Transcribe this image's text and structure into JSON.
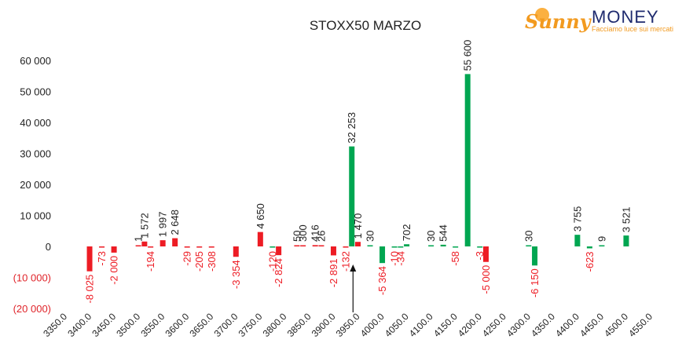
{
  "logo": {
    "word1": "Sunny",
    "word2": "MONEY",
    "tagline": "Facciamo luce sui mercati"
  },
  "chart_data": {
    "type": "bar",
    "title": "STOXX50 MARZO",
    "xlabel": "",
    "ylabel": "",
    "x_range": [
      3350,
      4550
    ],
    "x_ticks": [
      "3350.0",
      "3400.0",
      "3450.0",
      "3500.0",
      "3550.0",
      "3600.0",
      "3650.0",
      "3700.0",
      "3750.0",
      "3800.0",
      "3850.0",
      "3900.0",
      "3950.0",
      "4000.0",
      "4050.0",
      "4100.0",
      "4150.0",
      "4200.0",
      "4250.0",
      "4300.0",
      "4350.0",
      "4400.0",
      "4450.0",
      "4500.0",
      "4550.0"
    ],
    "ylim": [
      -20000,
      60000
    ],
    "y_ticks": [
      {
        "value": 60000,
        "label": "60 000"
      },
      {
        "value": 50000,
        "label": "50 000"
      },
      {
        "value": 40000,
        "label": "40 000"
      },
      {
        "value": 30000,
        "label": "30 000"
      },
      {
        "value": 20000,
        "label": "20 000"
      },
      {
        "value": 10000,
        "label": "10 000"
      },
      {
        "value": 0,
        "label": "0"
      },
      {
        "value": -10000,
        "label": "(10 000)"
      },
      {
        "value": -20000,
        "label": "(20 000)"
      }
    ],
    "grid": false,
    "colors": {
      "positive": "#00a651",
      "negative": "#ed1c24",
      "axis_negative_label": "#e0242a"
    },
    "marker": {
      "x": 3940,
      "direction": "up"
    },
    "bars": [
      {
        "x": 3400,
        "value": -8025,
        "label": "-8 025",
        "color": "#ed1c24"
      },
      {
        "x": 3425,
        "value": -73,
        "label": "-73",
        "color": "#ed1c24"
      },
      {
        "x": 3450,
        "value": -2000,
        "label": "-2 000",
        "color": "#ed1c24"
      },
      {
        "x": 3500,
        "value": 1,
        "label": "1",
        "color": "#ed1c24"
      },
      {
        "x": 3512.5,
        "value": 1572,
        "label": "1 572",
        "color": "#ed1c24"
      },
      {
        "x": 3525,
        "value": -194,
        "label": "-194",
        "color": "#ed1c24"
      },
      {
        "x": 3550,
        "value": 1997,
        "label": "1 997",
        "color": "#ed1c24"
      },
      {
        "x": 3575,
        "value": 2648,
        "label": "2 648",
        "color": "#ed1c24"
      },
      {
        "x": 3600,
        "value": -29,
        "label": "-29",
        "color": "#ed1c24"
      },
      {
        "x": 3625,
        "value": -205,
        "label": "-205",
        "color": "#ed1c24"
      },
      {
        "x": 3650,
        "value": -308,
        "label": "-308",
        "color": "#ed1c24"
      },
      {
        "x": 3700,
        "value": -3354,
        "label": "-3 354",
        "color": "#ed1c24"
      },
      {
        "x": 3750,
        "value": 4650,
        "label": "4 650",
        "color": "#ed1c24"
      },
      {
        "x": 3775,
        "value": -120,
        "label": "-120",
        "color": "#00a651"
      },
      {
        "x": 3787.5,
        "value": -2824,
        "label": "-2 824",
        "color": "#ed1c24"
      },
      {
        "x": 3825,
        "value": 50,
        "label": "50",
        "color": "#ed1c24"
      },
      {
        "x": 3837.5,
        "value": 300,
        "label": "300",
        "color": "#ed1c24"
      },
      {
        "x": 3862.5,
        "value": 416,
        "label": "416",
        "color": "#ed1c24"
      },
      {
        "x": 3875,
        "value": 26,
        "label": "26",
        "color": "#ed1c24"
      },
      {
        "x": 3900,
        "value": -2891,
        "label": "-2 891",
        "color": "#ed1c24"
      },
      {
        "x": 3925,
        "value": -132,
        "label": "-132",
        "color": "#ed1c24"
      },
      {
        "x": 3937.5,
        "value": 32253,
        "label": "32 253",
        "color": "#00a651"
      },
      {
        "x": 3950,
        "value": 1470,
        "label": "1 470",
        "color": "#ed1c24"
      },
      {
        "x": 3975,
        "value": 30,
        "label": "30",
        "color": "#00a651"
      },
      {
        "x": 4000,
        "value": -5364,
        "label": "-5 364",
        "color": "#00a651"
      },
      {
        "x": 4025,
        "value": -10,
        "label": "-10",
        "color": "#00a651"
      },
      {
        "x": 4037.5,
        "value": -34,
        "label": "-34",
        "color": "#00a651"
      },
      {
        "x": 4050,
        "value": 702,
        "label": "702",
        "color": "#00a651"
      },
      {
        "x": 4100,
        "value": 30,
        "label": "30",
        "color": "#00a651"
      },
      {
        "x": 4125,
        "value": 544,
        "label": "544",
        "color": "#00a651"
      },
      {
        "x": 4150,
        "value": -58,
        "label": "-58",
        "color": "#00a651"
      },
      {
        "x": 4175,
        "value": 55600,
        "label": "55 600",
        "color": "#00a651"
      },
      {
        "x": 4200,
        "value": -3,
        "label": "-3",
        "color": "#00a651"
      },
      {
        "x": 4212.5,
        "value": -5000,
        "label": "-5 000",
        "color": "#ed1c24"
      },
      {
        "x": 4300,
        "value": 30,
        "label": "30",
        "color": "#00a651"
      },
      {
        "x": 4312.5,
        "value": -6150,
        "label": "-6 150",
        "color": "#00a651"
      },
      {
        "x": 4400,
        "value": 3755,
        "label": "3 755",
        "color": "#00a651"
      },
      {
        "x": 4425,
        "value": -623,
        "label": "-623",
        "color": "#00a651"
      },
      {
        "x": 4450,
        "value": 9,
        "label": "9",
        "color": "#00a651"
      },
      {
        "x": 4500,
        "value": 3521,
        "label": "3 521",
        "color": "#00a651"
      }
    ]
  }
}
